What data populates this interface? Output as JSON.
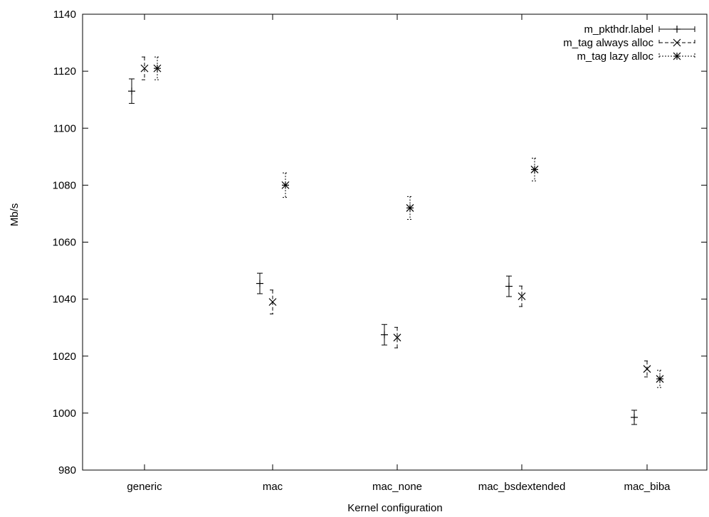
{
  "chart_data": {
    "type": "scatter",
    "title": "",
    "xlabel": "Kernel configuration",
    "ylabel": "Mb/s",
    "categories": [
      "generic",
      "mac",
      "mac_none",
      "mac_bsdextended",
      "mac_biba"
    ],
    "ylim": [
      980,
      1140
    ],
    "yticks": [
      980,
      1000,
      1020,
      1040,
      1060,
      1080,
      1100,
      1120,
      1140
    ],
    "grid": false,
    "legend_position": "top-right",
    "error_bars": true,
    "series": [
      {
        "name": "m_pkthdr.label",
        "marker": "plus",
        "line_style": "solid",
        "values": [
          1113,
          1045.5,
          1027.5,
          1044.5,
          998.5
        ],
        "errors": [
          4.3,
          3.6,
          3.6,
          3.6,
          2.5
        ]
      },
      {
        "name": "m_tag always alloc",
        "marker": "cross",
        "line_style": "dashed",
        "values": [
          1121,
          1039,
          1026.5,
          1041,
          1015.5
        ],
        "errors": [
          4,
          4.2,
          3.6,
          3.6,
          2.8
        ]
      },
      {
        "name": "m_tag lazy alloc",
        "marker": "star",
        "line_style": "dotted",
        "values": [
          1121,
          1080,
          1072,
          1085.5,
          1012
        ],
        "errors": [
          4,
          4.3,
          4,
          4,
          3
        ]
      }
    ]
  }
}
